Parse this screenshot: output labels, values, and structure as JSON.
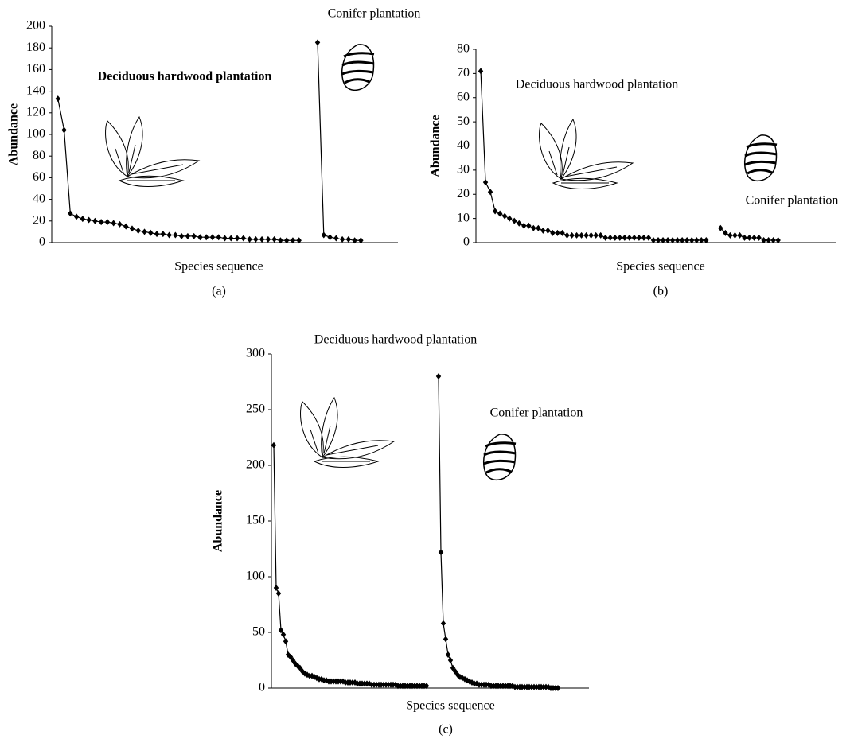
{
  "chart_data": [
    {
      "type": "line",
      "caption": "(a)",
      "xlabel": "Species sequence",
      "ylabel": "Abundance",
      "xlim": [
        0,
        56
      ],
      "ylim": [
        0,
        200
      ],
      "yticks": [
        0,
        20,
        40,
        60,
        80,
        100,
        120,
        140,
        160,
        180,
        200
      ],
      "series": [
        {
          "name": "Deciduous hardwood plantation",
          "color": "#000000",
          "x": [
            1,
            2,
            3,
            4,
            5,
            6,
            7,
            8,
            9,
            10,
            11,
            12,
            13,
            14,
            15,
            16,
            17,
            18,
            19,
            20,
            21,
            22,
            23,
            24,
            25,
            26,
            27,
            28,
            29,
            30,
            31,
            32,
            33,
            34,
            35,
            36,
            37,
            38,
            39,
            40
          ],
          "values": [
            133,
            104,
            27,
            24,
            22,
            21,
            20,
            19,
            19,
            18,
            17,
            15,
            13,
            11,
            10,
            9,
            8,
            8,
            7,
            7,
            6,
            6,
            6,
            5,
            5,
            5,
            5,
            4,
            4,
            4,
            4,
            3,
            3,
            3,
            3,
            3,
            2,
            2,
            2,
            2
          ]
        },
        {
          "name": "Conifer plantation",
          "color": "#000000",
          "x": [
            43,
            44,
            45,
            46,
            47,
            48,
            49,
            50
          ],
          "values": [
            185,
            7,
            5,
            4,
            3,
            3,
            2,
            2
          ]
        }
      ]
    },
    {
      "type": "line",
      "caption": "(b)",
      "xlabel": "Species sequence",
      "ylabel": "Abundance",
      "xlim": [
        0,
        75
      ],
      "ylim": [
        0,
        80
      ],
      "yticks": [
        0,
        10,
        20,
        30,
        40,
        50,
        60,
        70,
        80
      ],
      "series": [
        {
          "name": "Deciduous hardwood plantation",
          "color": "#000000",
          "x": [
            1,
            2,
            3,
            4,
            5,
            6,
            7,
            8,
            9,
            10,
            11,
            12,
            13,
            14,
            15,
            16,
            17,
            18,
            19,
            20,
            21,
            22,
            23,
            24,
            25,
            26,
            27,
            28,
            29,
            30,
            31,
            32,
            33,
            34,
            35,
            36,
            37,
            38,
            39,
            40,
            41,
            42,
            43,
            44,
            45,
            46,
            47,
            48
          ],
          "values": [
            71,
            25,
            21,
            13,
            12,
            11,
            10,
            9,
            8,
            7,
            7,
            6,
            6,
            5,
            5,
            4,
            4,
            4,
            3,
            3,
            3,
            3,
            3,
            3,
            3,
            3,
            2,
            2,
            2,
            2,
            2,
            2,
            2,
            2,
            2,
            2,
            1,
            1,
            1,
            1,
            1,
            1,
            1,
            1,
            1,
            1,
            1,
            1
          ]
        },
        {
          "name": "Conifer plantation",
          "color": "#000000",
          "x": [
            51,
            52,
            53,
            54,
            55,
            56,
            57,
            58,
            59,
            60,
            61,
            62,
            63
          ],
          "values": [
            6,
            4,
            3,
            3,
            3,
            2,
            2,
            2,
            2,
            1,
            1,
            1,
            1
          ]
        }
      ]
    },
    {
      "type": "line",
      "caption": "(c)",
      "xlabel": "Species sequence",
      "ylabel": "Abundance",
      "xlim": [
        0,
        133
      ],
      "ylim": [
        0,
        300
      ],
      "yticks": [
        0,
        50,
        100,
        150,
        200,
        250,
        300
      ],
      "series": [
        {
          "name": "Deciduous hardwood plantation",
          "color": "#000000",
          "x": [
            1,
            2,
            3,
            4,
            5,
            6,
            7,
            8,
            9,
            10,
            11,
            12,
            13,
            14,
            15,
            16,
            17,
            18,
            19,
            20,
            21,
            22,
            23,
            24,
            25,
            26,
            27,
            28,
            29,
            30,
            31,
            32,
            33,
            34,
            35,
            36,
            37,
            38,
            39,
            40,
            41,
            42,
            43,
            44,
            45,
            46,
            47,
            48,
            49,
            50,
            51,
            52,
            53,
            54,
            55,
            56,
            57,
            58,
            59,
            60,
            61,
            62,
            63,
            64,
            65
          ],
          "values": [
            218,
            90,
            85,
            52,
            48,
            42,
            30,
            28,
            25,
            22,
            20,
            18,
            15,
            13,
            12,
            11,
            11,
            10,
            9,
            8,
            8,
            7,
            7,
            6,
            6,
            6,
            6,
            6,
            6,
            6,
            5,
            5,
            5,
            5,
            5,
            4,
            4,
            4,
            4,
            4,
            4,
            3,
            3,
            3,
            3,
            3,
            3,
            3,
            3,
            3,
            3,
            3,
            2,
            2,
            2,
            2,
            2,
            2,
            2,
            2,
            2,
            2,
            2,
            2,
            2
          ]
        },
        {
          "name": "Conifer plantation",
          "color": "#000000",
          "x": [
            70,
            71,
            72,
            73,
            74,
            75,
            76,
            77,
            78,
            79,
            80,
            81,
            82,
            83,
            84,
            85,
            86,
            87,
            88,
            89,
            90,
            91,
            92,
            93,
            94,
            95,
            96,
            97,
            98,
            99,
            100,
            101,
            102,
            103,
            104,
            105,
            106,
            107,
            108,
            109,
            110,
            111,
            112,
            113,
            114,
            115,
            116,
            117,
            118,
            119,
            120
          ],
          "values": [
            280,
            122,
            58,
            44,
            30,
            25,
            18,
            15,
            12,
            10,
            9,
            8,
            7,
            6,
            5,
            4,
            4,
            3,
            3,
            3,
            3,
            3,
            2,
            2,
            2,
            2,
            2,
            2,
            2,
            2,
            2,
            2,
            1,
            1,
            1,
            1,
            1,
            1,
            1,
            1,
            1,
            1,
            1,
            1,
            1,
            1,
            1,
            0,
            0,
            0,
            0
          ]
        }
      ]
    }
  ]
}
